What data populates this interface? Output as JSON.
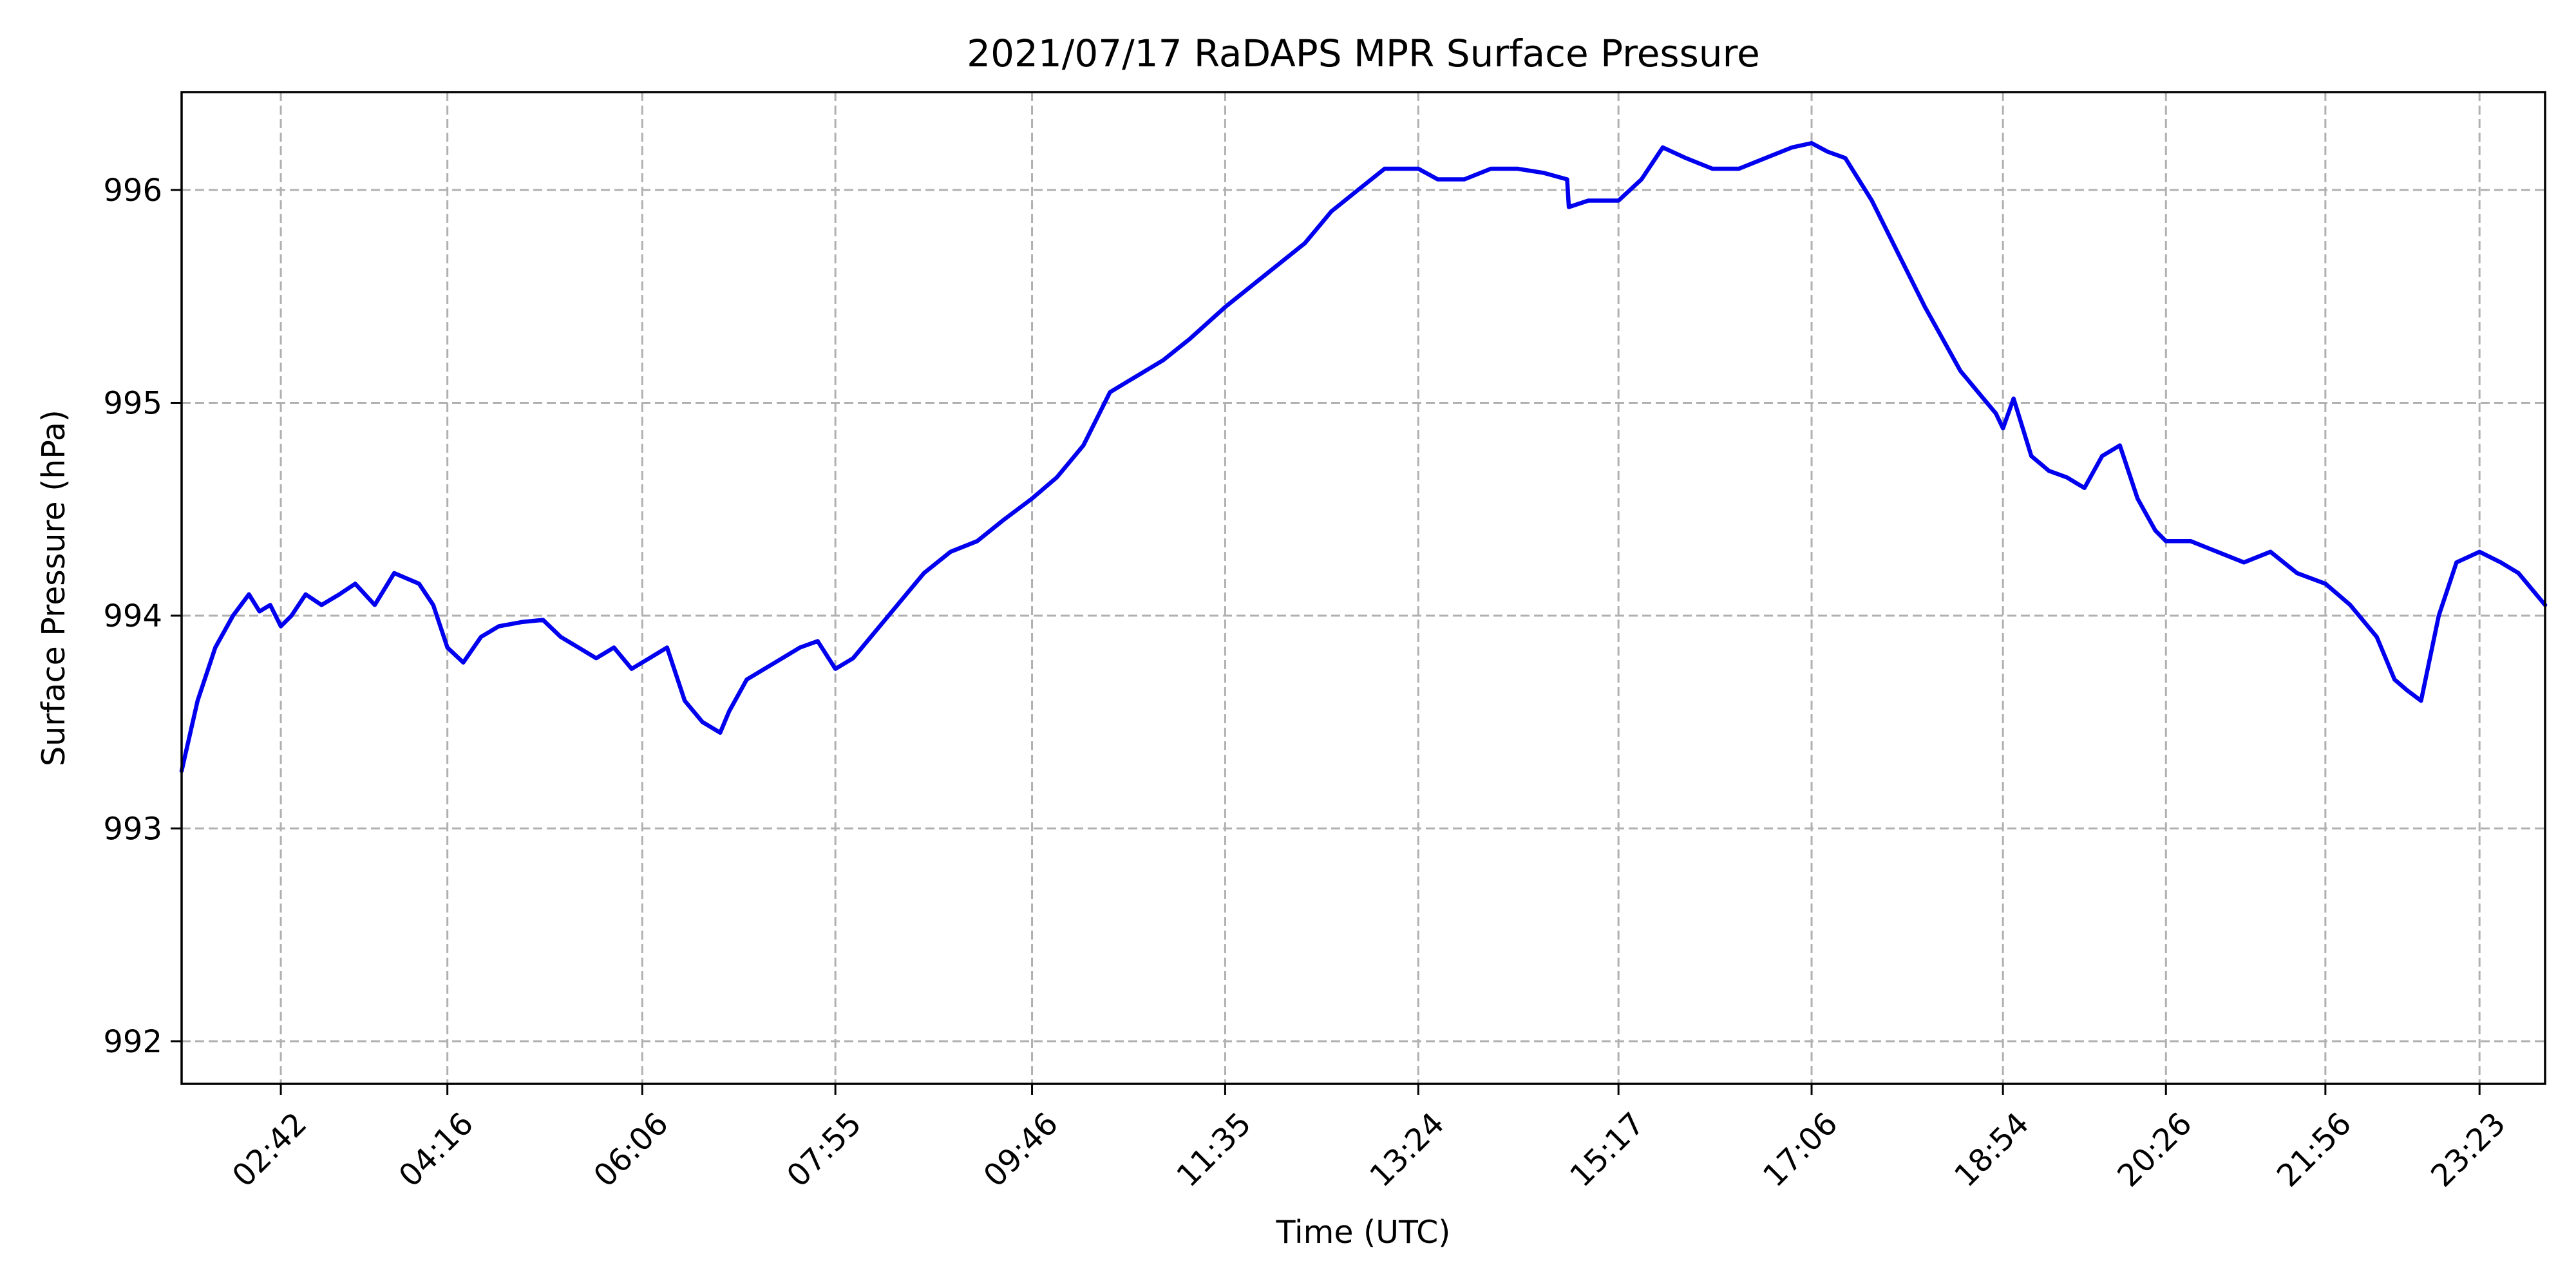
{
  "chart_data": {
    "type": "line",
    "title": "2021/07/17 RaDAPS MPR Surface Pressure",
    "xlabel": "Time (UTC)",
    "ylabel": "Surface Pressure (hPa)",
    "x_unit": "time of day (UTC)",
    "xlim": [
      "01:46",
      "24:00"
    ],
    "ylim": [
      991.8,
      996.46
    ],
    "x_ticks": [
      "02:42",
      "04:16",
      "06:06",
      "07:55",
      "09:46",
      "11:35",
      "13:24",
      "15:17",
      "17:06",
      "18:54",
      "20:26",
      "21:56",
      "23:23"
    ],
    "y_ticks": [
      992,
      993,
      994,
      995,
      996
    ],
    "grid": true,
    "legend": "none",
    "series": [
      {
        "color": "#0000ee",
        "x": [
          "01:46",
          "01:55",
          "02:05",
          "02:15",
          "02:24",
          "02:30",
          "02:36",
          "02:42",
          "02:48",
          "02:56",
          "03:05",
          "03:15",
          "03:24",
          "03:35",
          "03:46",
          "04:00",
          "04:08",
          "04:16",
          "04:25",
          "04:35",
          "04:45",
          "04:58",
          "05:10",
          "05:20",
          "05:30",
          "05:40",
          "05:50",
          "06:00",
          "06:10",
          "06:20",
          "06:30",
          "06:40",
          "06:50",
          "06:55",
          "07:05",
          "07:15",
          "07:25",
          "07:35",
          "07:45",
          "07:55",
          "08:05",
          "08:15",
          "08:30",
          "08:45",
          "09:00",
          "09:15",
          "09:30",
          "09:46",
          "10:00",
          "10:15",
          "10:30",
          "10:40",
          "10:50",
          "11:00",
          "11:15",
          "11:35",
          "11:50",
          "12:05",
          "12:20",
          "12:35",
          "12:50",
          "13:05",
          "13:24",
          "13:35",
          "13:50",
          "14:05",
          "14:20",
          "14:35",
          "14:48",
          "14:49",
          "15:00",
          "15:10",
          "15:17",
          "15:30",
          "15:42",
          "15:55",
          "16:10",
          "16:25",
          "16:40",
          "16:55",
          "17:06",
          "17:15",
          "17:25",
          "17:40",
          "17:55",
          "18:10",
          "18:20",
          "18:30",
          "18:40",
          "18:50",
          "18:54",
          "19:00",
          "19:10",
          "19:20",
          "19:30",
          "19:40",
          "19:50",
          "20:00",
          "20:10",
          "20:20",
          "20:26",
          "20:40",
          "20:55",
          "21:10",
          "21:25",
          "21:40",
          "21:56",
          "22:10",
          "22:25",
          "22:35",
          "22:42",
          "22:50",
          "23:00",
          "23:10",
          "23:23",
          "23:35",
          "23:45",
          "23:55",
          "24:00"
        ],
        "values": [
          993.27,
          993.6,
          993.85,
          994.0,
          994.1,
          994.02,
          994.05,
          993.95,
          994.0,
          994.1,
          994.05,
          994.1,
          994.15,
          994.05,
          994.2,
          994.15,
          994.05,
          993.85,
          993.78,
          993.9,
          993.95,
          993.97,
          993.98,
          993.9,
          993.85,
          993.8,
          993.85,
          993.75,
          993.8,
          993.85,
          993.6,
          993.5,
          993.45,
          993.55,
          993.7,
          993.75,
          993.8,
          993.85,
          993.88,
          993.75,
          993.8,
          993.9,
          994.05,
          994.2,
          994.3,
          994.35,
          994.45,
          994.55,
          994.65,
          994.8,
          995.05,
          995.1,
          995.15,
          995.2,
          995.3,
          995.45,
          995.55,
          995.65,
          995.75,
          995.9,
          996.0,
          996.1,
          996.1,
          996.05,
          996.05,
          996.1,
          996.1,
          996.08,
          996.05,
          995.92,
          995.95,
          995.95,
          995.95,
          996.05,
          996.2,
          996.15,
          996.1,
          996.1,
          996.15,
          996.2,
          996.22,
          996.18,
          996.15,
          995.95,
          995.7,
          995.45,
          995.3,
          995.15,
          995.05,
          994.95,
          994.88,
          995.02,
          994.75,
          994.68,
          994.65,
          994.6,
          994.75,
          994.8,
          994.55,
          994.4,
          994.35,
          994.35,
          994.3,
          994.25,
          994.3,
          994.2,
          994.15,
          994.05,
          993.9,
          993.7,
          993.65,
          993.6,
          994.0,
          994.25,
          994.3,
          994.25,
          994.2,
          994.1,
          994.05
        ]
      }
    ]
  }
}
